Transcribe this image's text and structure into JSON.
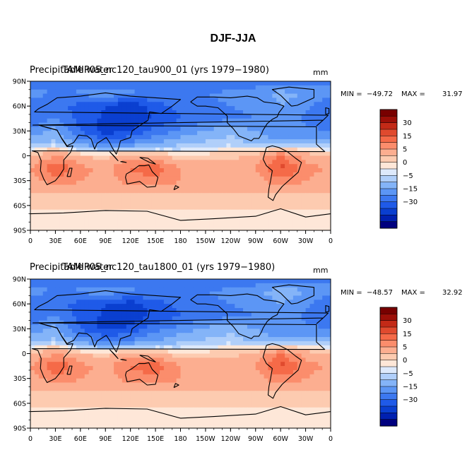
{
  "title": "DJF-JJA",
  "colors": {
    "levels": [
      "#00007f",
      "#0020b0",
      "#0a3fd0",
      "#1f5ae8",
      "#3c78f0",
      "#5c96f5",
      "#84b4f8",
      "#b0cffa",
      "#dde9fb",
      "#fee7d8",
      "#fdcbb0",
      "#fcae90",
      "#fb8d6c",
      "#f56a48",
      "#e04a2e",
      "#c32a17",
      "#9c0f08",
      "#780000"
    ]
  },
  "colorbar": {
    "labels": [
      "30",
      "15",
      "5",
      "0",
      "−5",
      "−15",
      "−30"
    ]
  },
  "panels": [
    {
      "left_title": "Precipitable water",
      "overlay_title": "TAMIP05_nc120_tau900_01 (yrs 1979−1980)",
      "units": "mm",
      "min_label": "MIN =",
      "min_value": "−49.72",
      "max_label": "MAX =",
      "max_value": "31.97"
    },
    {
      "left_title": "Precipitable water",
      "overlay_title": "TAMIP05_nc120_tau1800_01 (yrs 1979−1980)",
      "units": "mm",
      "min_label": "MIN =",
      "min_value": "−48.57",
      "max_label": "MAX =",
      "max_value": "32.92"
    }
  ],
  "chart_data": [
    {
      "type": "heatmap",
      "xlabels": [
        "0",
        "30E",
        "60E",
        "90E",
        "120E",
        "150E",
        "180",
        "150W",
        "120W",
        "90W",
        "60W",
        "30W",
        "0"
      ],
      "ylabels": [
        "90N",
        "60N",
        "30N",
        "0",
        "30S",
        "60S",
        "90S"
      ],
      "xlim": [
        0,
        360
      ],
      "ylim": [
        -90,
        90
      ],
      "contour_levels": [
        -35,
        -30,
        -25,
        -20,
        -15,
        -10,
        -5,
        -2,
        0,
        2,
        5,
        10,
        15,
        20,
        25,
        30,
        35
      ],
      "lat": [
        90,
        75,
        60,
        45,
        30,
        15,
        0,
        -15,
        -30,
        -45,
        -60,
        -75,
        -90
      ],
      "lon": [
        0,
        30,
        60,
        90,
        120,
        150,
        180,
        210,
        240,
        270,
        300,
        330,
        360
      ],
      "values": [
        [
          -18,
          -18,
          -18,
          -18,
          -18,
          -18,
          -18,
          -18,
          -18,
          -18,
          -18,
          -18,
          -18
        ],
        [
          -12,
          -16,
          -14,
          -12,
          -14,
          -16,
          -16,
          -15,
          -14,
          -12,
          -8,
          -10,
          -12
        ],
        [
          -20,
          -18,
          -22,
          -25,
          -30,
          -22,
          -18,
          -16,
          -15,
          -14,
          -10,
          -14,
          -20
        ],
        [
          -18,
          -15,
          -22,
          -26,
          -30,
          -24,
          -20,
          -18,
          -16,
          -15,
          -12,
          -16,
          -18
        ],
        [
          -15,
          -8,
          -20,
          -28,
          -25,
          -18,
          -14,
          -10,
          -6,
          -10,
          -15,
          -14,
          -15
        ],
        [
          -5,
          -4,
          -12,
          -15,
          -14,
          -10,
          -6,
          -4,
          -3,
          -6,
          -8,
          -6,
          -5
        ],
        [
          4,
          10,
          5,
          3,
          8,
          6,
          2,
          3,
          4,
          6,
          15,
          8,
          4
        ],
        [
          10,
          20,
          12,
          8,
          16,
          18,
          10,
          8,
          6,
          10,
          22,
          12,
          10
        ],
        [
          6,
          14,
          10,
          8,
          12,
          14,
          10,
          8,
          6,
          7,
          14,
          10,
          6
        ],
        [
          5,
          5,
          5,
          5,
          5,
          5,
          5,
          5,
          5,
          5,
          5,
          5,
          5
        ],
        [
          3,
          3,
          3,
          3,
          3,
          3,
          3,
          3,
          3,
          3,
          3,
          3,
          3
        ],
        [
          1,
          1,
          1,
          1,
          1,
          1,
          1,
          1,
          1,
          1,
          1,
          1,
          1
        ],
        [
          1,
          1,
          1,
          1,
          1,
          1,
          1,
          1,
          1,
          1,
          1,
          1,
          1
        ]
      ]
    },
    {
      "type": "heatmap",
      "xlabels": [
        "0",
        "30E",
        "60E",
        "90E",
        "120E",
        "150E",
        "180",
        "150W",
        "120W",
        "90W",
        "60W",
        "30W",
        "0"
      ],
      "ylabels": [
        "90N",
        "60N",
        "30N",
        "0",
        "30S",
        "60S",
        "90S"
      ],
      "xlim": [
        0,
        360
      ],
      "ylim": [
        -90,
        90
      ],
      "contour_levels": [
        -35,
        -30,
        -25,
        -20,
        -15,
        -10,
        -5,
        -2,
        0,
        2,
        5,
        10,
        15,
        20,
        25,
        30,
        35
      ],
      "lat": [
        90,
        75,
        60,
        45,
        30,
        15,
        0,
        -15,
        -30,
        -45,
        -60,
        -75,
        -90
      ],
      "lon": [
        0,
        30,
        60,
        90,
        120,
        150,
        180,
        210,
        240,
        270,
        300,
        330,
        360
      ],
      "values": [
        [
          -18,
          -18,
          -18,
          -18,
          -18,
          -18,
          -18,
          -18,
          -18,
          -18,
          -18,
          -18,
          -18
        ],
        [
          -12,
          -16,
          -14,
          -12,
          -14,
          -16,
          -16,
          -15,
          -14,
          -12,
          -6,
          -10,
          -12
        ],
        [
          -20,
          -18,
          -22,
          -25,
          -28,
          -22,
          -18,
          -16,
          -15,
          -14,
          -10,
          -14,
          -20
        ],
        [
          -18,
          -15,
          -22,
          -26,
          -28,
          -24,
          -20,
          -18,
          -16,
          -15,
          -12,
          -16,
          -18
        ],
        [
          -15,
          -8,
          -20,
          -27,
          -24,
          -17,
          -13,
          -9,
          -6,
          -10,
          -15,
          -14,
          -15
        ],
        [
          -5,
          -4,
          -12,
          -15,
          -14,
          -10,
          -6,
          -4,
          -3,
          -6,
          -8,
          -6,
          -5
        ],
        [
          4,
          10,
          5,
          3,
          8,
          6,
          2,
          3,
          4,
          6,
          15,
          8,
          4
        ],
        [
          10,
          20,
          12,
          8,
          16,
          18,
          10,
          8,
          6,
          10,
          22,
          12,
          10
        ],
        [
          6,
          14,
          10,
          8,
          12,
          14,
          10,
          8,
          6,
          7,
          14,
          10,
          6
        ],
        [
          5,
          5,
          5,
          5,
          5,
          5,
          5,
          5,
          5,
          5,
          5,
          5,
          5
        ],
        [
          3,
          3,
          3,
          3,
          3,
          3,
          3,
          3,
          3,
          3,
          3,
          3,
          3
        ],
        [
          1,
          1,
          1,
          1,
          1,
          1,
          1,
          1,
          1,
          1,
          1,
          1,
          1
        ],
        [
          1,
          1,
          1,
          1,
          1,
          1,
          1,
          1,
          1,
          1,
          1,
          1,
          1
        ]
      ]
    }
  ]
}
